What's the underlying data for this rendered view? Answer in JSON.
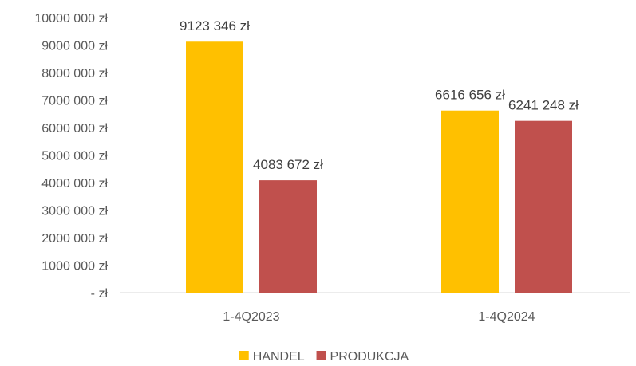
{
  "chart_data": {
    "type": "bar",
    "title": "",
    "xlabel": "",
    "ylabel": "",
    "categories": [
      "1-4Q2023",
      "1-4Q2024"
    ],
    "series": [
      {
        "name": "HANDEL",
        "color": "#FFC000",
        "values": [
          9123346,
          6616656
        ],
        "labels": [
          "9123 346 zł",
          "6616 656 zł"
        ]
      },
      {
        "name": "PRODUKCJA",
        "color": "#C0504D",
        "values": [
          4083672,
          6241248
        ],
        "labels": [
          "4083 672 zł",
          "6241 248 zł"
        ]
      }
    ],
    "ylim": [
      0,
      10000000
    ],
    "yticks": [
      {
        "value": 0,
        "label": "-   zł"
      },
      {
        "value": 1000000,
        "label": "1000 000 zł"
      },
      {
        "value": 2000000,
        "label": "2000 000 zł"
      },
      {
        "value": 3000000,
        "label": "3000 000 zł"
      },
      {
        "value": 4000000,
        "label": "4000 000 zł"
      },
      {
        "value": 5000000,
        "label": "5000 000 zł"
      },
      {
        "value": 6000000,
        "label": "6000 000 zł"
      },
      {
        "value": 7000000,
        "label": "7000 000 zł"
      },
      {
        "value": 8000000,
        "label": "8000 000 zł"
      },
      {
        "value": 9000000,
        "label": "9000 000 zł"
      },
      {
        "value": 10000000,
        "label": "10000 000 zł"
      }
    ],
    "grid": false,
    "axis_color": "#D9D9D9",
    "legend": "bottom-center"
  }
}
